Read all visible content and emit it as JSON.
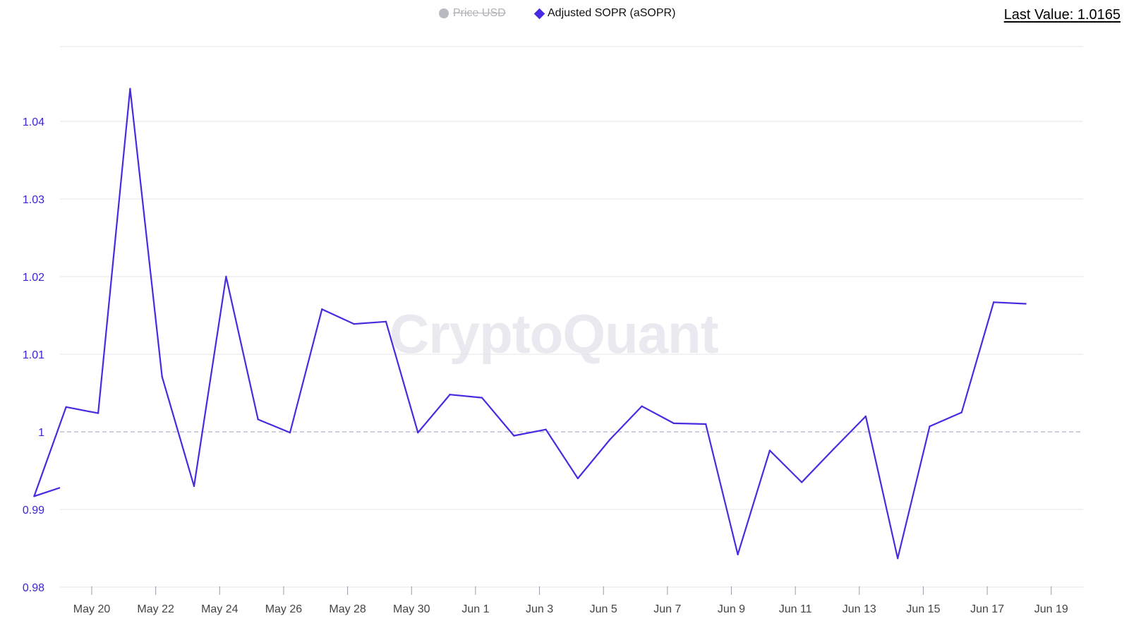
{
  "legend": {
    "price_label": "Price USD",
    "sopr_label": "Adjusted SOPR (aSOPR)"
  },
  "last_value_text": "Last Value: 1.0165",
  "watermark": "CryptoQuant",
  "colors": {
    "line": "#4a2ae0",
    "grid": "#e4e4e8",
    "baseline": "#b4b4c8",
    "ytick": "#3b24d6",
    "disabled": "#b9b9c2"
  },
  "chart_data": {
    "type": "line",
    "title": "",
    "xlabel": "",
    "ylabel": "",
    "ylim": [
      0.98,
      1.05
    ],
    "yticks": [
      0.98,
      0.99,
      1,
      1.01,
      1.02,
      1.03,
      1.04
    ],
    "ytick_labels": [
      "0.98",
      "0.99",
      "1",
      "1.01",
      "1.02",
      "1.03",
      "1.04"
    ],
    "reference_line": 1,
    "xticks": [
      "May 20",
      "May 22",
      "May 24",
      "May 26",
      "May 28",
      "May 30",
      "Jun 1",
      "Jun 3",
      "Jun 5",
      "Jun 7",
      "Jun 9",
      "Jun 11",
      "Jun 13",
      "Jun 15",
      "Jun 17",
      "Jun 19"
    ],
    "series": [
      {
        "name": "Adjusted SOPR (aSOPR)",
        "x": [
          "May 18",
          "May 19",
          "May 20",
          "May 21",
          "May 22",
          "May 23",
          "May 24",
          "May 25",
          "May 26",
          "May 27",
          "May 28",
          "May 29",
          "May 30",
          "May 31",
          "Jun 1",
          "Jun 2",
          "Jun 3",
          "Jun 4",
          "Jun 5",
          "Jun 6",
          "Jun 7",
          "Jun 8",
          "Jun 9",
          "Jun 10",
          "Jun 11",
          "Jun 12",
          "Jun 13",
          "Jun 14",
          "Jun 15",
          "Jun 16",
          "Jun 17",
          "Jun 18"
        ],
        "values": [
          0.9917,
          1.0032,
          1.0024,
          1.0442,
          1.0071,
          0.993,
          1.02,
          1.0016,
          0.9999,
          1.0158,
          1.0139,
          1.0142,
          0.9999,
          1.0048,
          1.0044,
          0.9995,
          1.0003,
          0.994,
          0.999,
          1.0033,
          1.0011,
          1.001,
          0.9842,
          0.9976,
          0.9935,
          0.9978,
          1.002,
          0.9837,
          1.0007,
          1.0025,
          1.0167,
          1.0165
        ]
      }
    ]
  }
}
